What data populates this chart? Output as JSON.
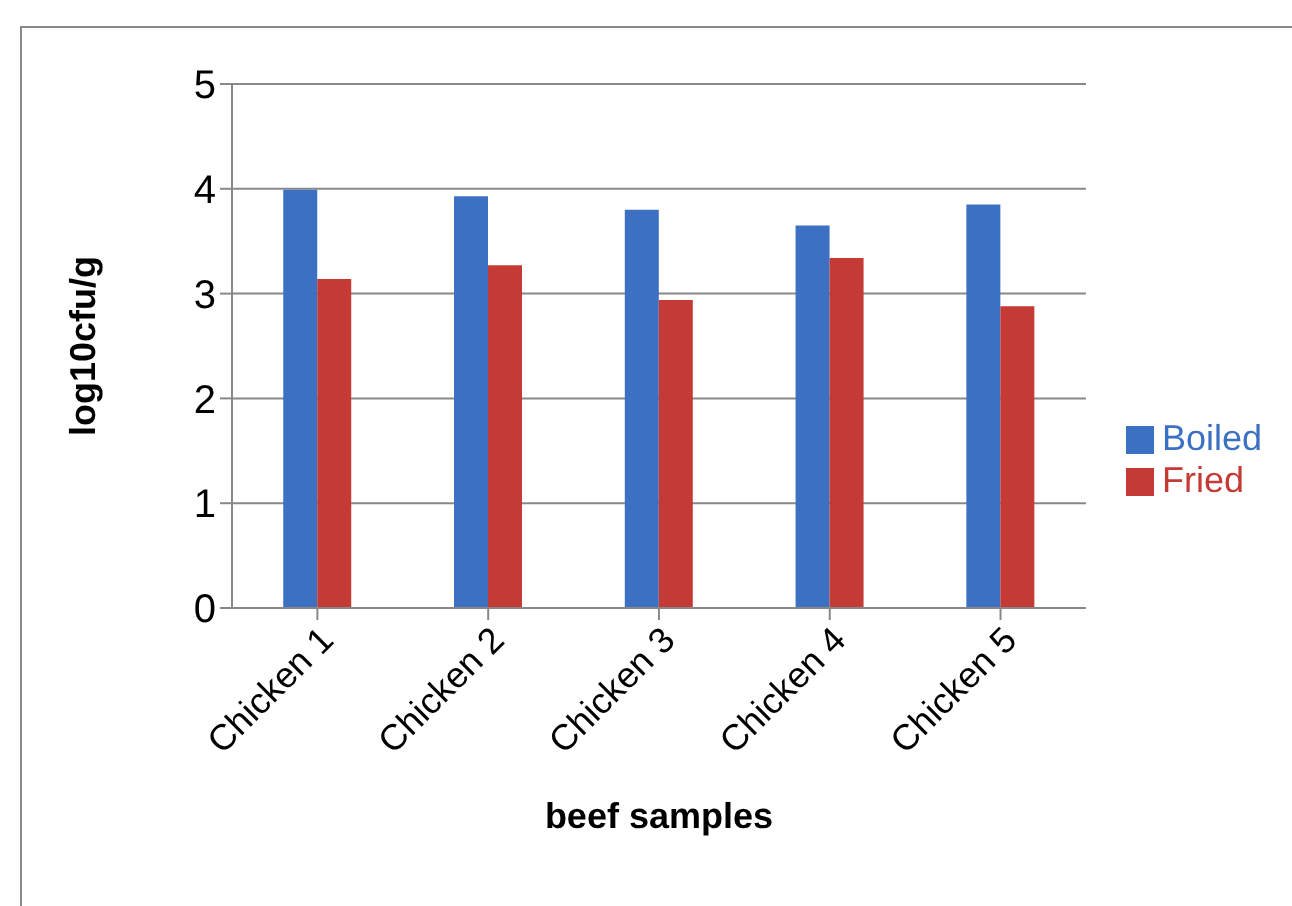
{
  "chart_data": {
    "type": "bar",
    "xlabel": "beef samples",
    "ylabel": "log10cfu/g",
    "categories": [
      "Chicken 1",
      "Chicken 2",
      "Chicken 3",
      "Chicken 4",
      "Chicken 5"
    ],
    "series": [
      {
        "name": "Boiled",
        "color": "#3c70c2",
        "values": [
          3.99,
          3.93,
          3.8,
          3.65,
          3.85
        ]
      },
      {
        "name": "Fried",
        "color": "#c43a35",
        "values": [
          3.14,
          3.27,
          2.94,
          3.34,
          2.88
        ]
      }
    ],
    "ylim": [
      0,
      5
    ],
    "yticks": [
      0,
      1,
      2,
      3,
      4,
      5
    ],
    "grid": "y",
    "legend": "right"
  }
}
